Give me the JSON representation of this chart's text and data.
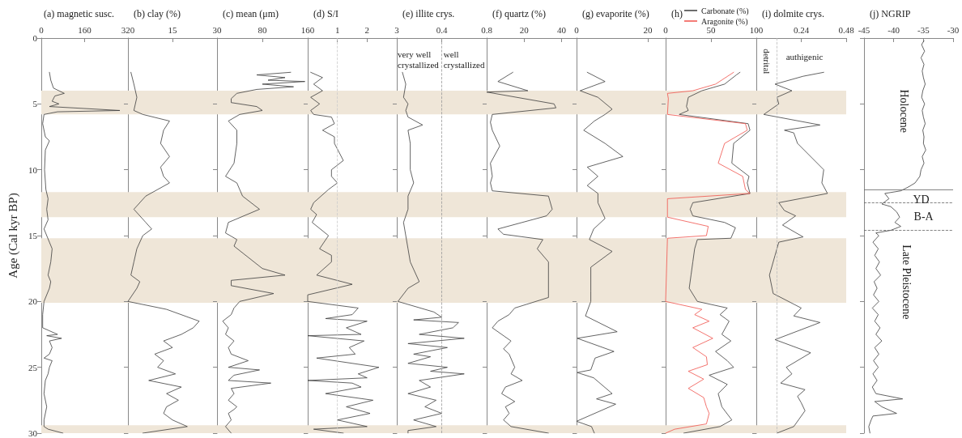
{
  "chart_data": [
    {
      "type": "line",
      "title": "(a) magnetic susc.",
      "ylabel": "Age (Cal kyr BP)",
      "xlim": [
        0,
        320
      ],
      "xticks": [
        0,
        160,
        320
      ],
      "ylim": [
        30,
        0
      ],
      "yticks": [
        0,
        5,
        10,
        15,
        20,
        25,
        30
      ],
      "bands": [
        {
          "axis": "y",
          "from": 4,
          "to": 5.8,
          "color": "#efe6d8"
        },
        {
          "axis": "y",
          "from": 11.7,
          "to": 13.6,
          "color": "#efe6d8"
        },
        {
          "axis": "y",
          "from": 15.2,
          "to": 20.1,
          "color": "#efe6d8"
        },
        {
          "axis": "y",
          "from": 29.4,
          "to": 30,
          "color": "#efe6d8"
        }
      ],
      "series": [
        {
          "color": "#3c3c3c",
          "x": [
            30,
            35,
            45,
            85,
            50,
            40,
            65,
            30,
            290,
            60,
            10,
            5,
            15,
            30,
            15,
            12,
            17,
            25,
            20,
            25,
            10,
            30,
            40,
            35,
            25,
            35,
            30,
            10,
            5,
            5,
            60,
            20,
            75,
            30,
            40,
            30,
            10,
            40,
            30,
            25,
            15,
            10,
            20,
            10,
            10,
            25,
            80
          ],
          "values": [
            2.6,
            3.2,
            3.8,
            4.2,
            4.4,
            4.8,
            5.0,
            5.2,
            5.5,
            5.6,
            5.8,
            6.5,
            7.5,
            7.8,
            8.5,
            10,
            11.5,
            12.2,
            13,
            13.8,
            14.5,
            15.5,
            16,
            17,
            18,
            18.5,
            19,
            20,
            21,
            22,
            22.5,
            22.6,
            22.8,
            23,
            23.5,
            24,
            24.3,
            24.5,
            25,
            25.5,
            26,
            27,
            28,
            29,
            29.5,
            29.7,
            30
          ]
        }
      ]
    },
    {
      "type": "line",
      "title": "(b) clay (%)",
      "xlim": [
        0,
        30
      ],
      "xticks": [
        15,
        30
      ],
      "ylim": [
        30,
        0
      ],
      "yticks": [
        0,
        5,
        10,
        15,
        20,
        25,
        30
      ],
      "tick_labels": "x",
      "bands": [
        {
          "axis": "y",
          "from": 4,
          "to": 5.8,
          "color": "#efe6d8"
        },
        {
          "axis": "y",
          "from": 11.7,
          "to": 13.6,
          "color": "#efe6d8"
        },
        {
          "axis": "y",
          "from": 15.2,
          "to": 20.1,
          "color": "#efe6d8"
        },
        {
          "axis": "y",
          "from": 29.4,
          "to": 30,
          "color": "#efe6d8"
        }
      ],
      "series": [
        {
          "color": "#3c3c3c",
          "x": [
            1,
            2,
            3,
            2,
            5,
            14,
            12,
            11,
            14,
            11,
            12,
            14,
            6,
            2,
            6,
            8,
            5,
            3,
            2,
            1,
            4,
            3,
            0,
            13,
            24,
            22,
            18,
            12,
            15,
            9,
            12,
            10,
            16,
            7,
            18,
            13,
            17,
            13,
            12,
            15,
            20,
            5
          ],
          "values": [
            2.6,
            3.5,
            4.5,
            5.5,
            5.8,
            6.3,
            7,
            8,
            9,
            9.8,
            10.5,
            11,
            12,
            13,
            14,
            14.5,
            15,
            16,
            17,
            18,
            18.5,
            19,
            20,
            20.6,
            21.5,
            22,
            22.5,
            23,
            23.5,
            24,
            24.5,
            25,
            25.5,
            26,
            26.5,
            27,
            27.5,
            28,
            28.5,
            29,
            29.5,
            30
          ]
        }
      ]
    },
    {
      "type": "line",
      "title": "(c) mean (μm)",
      "xlim": [
        0,
        160
      ],
      "xticks": [
        80,
        160
      ],
      "ylim": [
        30,
        0
      ],
      "yticks": [
        0,
        5,
        10,
        15,
        20,
        25,
        30
      ],
      "tick_labels": "x",
      "bands": [
        {
          "axis": "y",
          "from": 4,
          "to": 5.8,
          "color": "#efe6d8"
        },
        {
          "axis": "y",
          "from": 11.7,
          "to": 13.6,
          "color": "#efe6d8"
        },
        {
          "axis": "y",
          "from": 15.2,
          "to": 20.1,
          "color": "#efe6d8"
        },
        {
          "axis": "y",
          "from": 29.4,
          "to": 30,
          "color": "#efe6d8"
        }
      ],
      "series": [
        {
          "color": "#3c3c3c",
          "x": [
            130,
            70,
            120,
            90,
            155,
            80,
            135,
            70,
            35,
            25,
            25,
            70,
            80,
            40,
            20,
            35,
            35,
            30,
            15,
            35,
            45,
            75,
            20,
            15,
            35,
            30,
            80,
            120,
            25,
            25,
            100,
            40,
            30,
            25,
            10,
            20,
            15,
            30,
            20,
            25,
            55,
            20,
            75,
            30,
            20,
            95,
            25,
            30,
            20,
            35,
            30,
            20,
            25,
            15,
            25
          ],
          "values": [
            2.6,
            2.8,
            3.0,
            3.2,
            3.3,
            3.5,
            3.7,
            3.9,
            4.2,
            4.6,
            4.9,
            5.2,
            5.5,
            5.8,
            6.3,
            7,
            8,
            9.5,
            10.5,
            11,
            12,
            13,
            14,
            14.8,
            15.3,
            15.8,
            17.5,
            18,
            18.4,
            18.8,
            19.4,
            20,
            20.5,
            21,
            21.5,
            22,
            22.5,
            23,
            23.5,
            24,
            24.5,
            25,
            25.2,
            25.6,
            26,
            26.2,
            26.6,
            27,
            27.5,
            28,
            28.2,
            28.5,
            29,
            29.5,
            30
          ]
        }
      ]
    },
    {
      "type": "line",
      "title": "(d) S/I",
      "xlim": [
        0,
        3
      ],
      "xticks": [
        1,
        2,
        3
      ],
      "ylim": [
        30,
        0
      ],
      "yticks": [
        0,
        5,
        10,
        15,
        20,
        25,
        30
      ],
      "tick_labels": "x",
      "ref_lines": [
        {
          "axis": "x",
          "value": 1,
          "color": "#cccccc",
          "line_style": "dashed"
        }
      ],
      "bands": [
        {
          "axis": "y",
          "from": 4,
          "to": 5.8,
          "color": "#efe6d8"
        },
        {
          "axis": "y",
          "from": 11.7,
          "to": 13.6,
          "color": "#efe6d8"
        },
        {
          "axis": "y",
          "from": 15.2,
          "to": 20.1,
          "color": "#efe6d8"
        },
        {
          "axis": "y",
          "from": 29.4,
          "to": 30,
          "color": "#efe6d8"
        }
      ],
      "series": [
        {
          "color": "#3c3c3c",
          "x": [
            0.1,
            0.5,
            0.2,
            0.5,
            0.1,
            0.4,
            0.1,
            0.2,
            0.8,
            0.9,
            0.5,
            0.9,
            0.9,
            1.2,
            0.8,
            0.8,
            1.0,
            0.7,
            0.2,
            0.1,
            0.3,
            0.15,
            0.7,
            0.4,
            0.8,
            0.8,
            0.3,
            1.5,
            0,
            0,
            1.7,
            1.5,
            0.6,
            2.0,
            1.3,
            1.8,
            0,
            1.9,
            1.4,
            1.6,
            0.3,
            2.4,
            1.7,
            2.0,
            0,
            1.5,
            1.8,
            0.6,
            2.2,
            1.3,
            2.1,
            1.0,
            2.0,
            0.2,
            1.2
          ],
          "values": [
            2.6,
            3,
            3.5,
            4,
            4.5,
            5,
            5.5,
            5.8,
            6,
            6.5,
            7,
            7.5,
            8,
            9.3,
            10,
            10.5,
            11,
            11.5,
            12.5,
            13,
            13.4,
            14,
            15,
            16,
            16.5,
            17,
            18,
            18.7,
            19.5,
            20,
            20.5,
            21,
            21.3,
            21.5,
            22,
            22.5,
            22.6,
            23,
            23.5,
            24,
            24.3,
            25,
            25.5,
            25.8,
            26,
            26.2,
            26.5,
            27,
            27.5,
            28,
            28.5,
            29,
            29.5,
            29.7,
            30
          ]
        }
      ]
    },
    {
      "type": "line",
      "title": "(e) illite crys.",
      "xlim": [
        0,
        0.8
      ],
      "xticks": [
        0.4,
        0.8
      ],
      "ylim": [
        30,
        0
      ],
      "yticks": [
        0,
        5,
        10,
        15,
        20,
        25,
        30
      ],
      "tick_labels": "x",
      "ref_lines": [
        {
          "axis": "x",
          "value": 0.4,
          "color": "#999999",
          "line_style": "dashed"
        }
      ],
      "annotations": [
        "very well crystallized",
        "well crystallized"
      ],
      "bands": [
        {
          "axis": "y",
          "from": 4,
          "to": 5.8,
          "color": "#efe6d8"
        },
        {
          "axis": "y",
          "from": 11.7,
          "to": 13.6,
          "color": "#efe6d8"
        },
        {
          "axis": "y",
          "from": 15.2,
          "to": 20.1,
          "color": "#efe6d8"
        },
        {
          "axis": "y",
          "from": 29.4,
          "to": 30,
          "color": "#efe6d8"
        }
      ],
      "series": [
        {
          "color": "#3c3c3c",
          "x": [
            0.05,
            0.08,
            0.06,
            0.1,
            0.08,
            0.1,
            0.23,
            0.1,
            0.12,
            0.12,
            0.15,
            0.1,
            0.1,
            0.06,
            0.08,
            0.1,
            0.12,
            0.2,
            0.1,
            0.01,
            0.33,
            0.4,
            0.15,
            0.55,
            0.5,
            0.2,
            0.6,
            0.1,
            0.45,
            0.15,
            0.3,
            0.1,
            0.45,
            0.3,
            0.6,
            0.2,
            0.3,
            0.1,
            0.35,
            0.25,
            0.4,
            0.15,
            0.35,
            0.1,
            0.1
          ],
          "values": [
            2.6,
            3.5,
            4.5,
            5,
            5.5,
            6,
            6.6,
            7,
            8,
            10,
            11,
            12,
            13,
            14,
            15,
            16,
            17,
            18.5,
            19,
            20,
            20.8,
            21.2,
            21.4,
            21.6,
            22,
            22.5,
            22.8,
            23.2,
            23.5,
            24,
            24.2,
            24.7,
            25,
            25.3,
            25.5,
            26,
            26.5,
            27,
            27.5,
            28,
            28.5,
            29,
            29.5,
            29.8,
            30
          ]
        }
      ]
    },
    {
      "type": "line",
      "title": "(f) quartz (%)",
      "xlim": [
        0,
        48
      ],
      "xticks": [
        20,
        40
      ],
      "ylim": [
        30,
        0
      ],
      "yticks": [
        0,
        5,
        10,
        15,
        20,
        25,
        30
      ],
      "tick_labels": "x",
      "bands": [
        {
          "axis": "y",
          "from": 4,
          "to": 5.8,
          "color": "#efe6d8"
        },
        {
          "axis": "y",
          "from": 11.7,
          "to": 13.6,
          "color": "#efe6d8"
        },
        {
          "axis": "y",
          "from": 15.2,
          "to": 20.1,
          "color": "#efe6d8"
        },
        {
          "axis": "y",
          "from": 29.4,
          "to": 30,
          "color": "#efe6d8"
        }
      ],
      "series": [
        {
          "color": "#3c3c3c",
          "x": [
            14,
            6,
            22,
            0,
            36,
            37,
            3,
            2,
            3,
            7,
            2,
            3,
            2,
            3,
            33,
            35,
            32,
            6,
            9,
            30,
            27,
            33,
            33,
            15,
            12,
            6,
            3,
            13,
            9,
            12,
            15,
            13,
            19,
            10,
            8,
            15,
            10,
            12,
            9,
            13,
            33
          ],
          "values": [
            2.6,
            3.3,
            4.0,
            4.1,
            5.0,
            5.3,
            5.8,
            6.4,
            7.0,
            8.2,
            9.5,
            10.5,
            11,
            11.6,
            12,
            13,
            13.5,
            14.5,
            14.9,
            15.3,
            16,
            17,
            19.7,
            20.5,
            21,
            21.5,
            22,
            23,
            23.6,
            24,
            25,
            25.5,
            26,
            26.5,
            27,
            27.6,
            28,
            28.5,
            29,
            29.5,
            30
          ]
        }
      ]
    },
    {
      "type": "line",
      "title": "(g) evaporite (%)",
      "xlim": [
        0,
        25
      ],
      "xticks": [
        0,
        20
      ],
      "ylim": [
        30,
        0
      ],
      "yticks": [
        0,
        5,
        10,
        15,
        20,
        25,
        30
      ],
      "tick_labels": "x",
      "bands": [
        {
          "axis": "y",
          "from": 4,
          "to": 5.8,
          "color": "#efe6d8"
        },
        {
          "axis": "y",
          "from": 11.7,
          "to": 13.6,
          "color": "#efe6d8"
        },
        {
          "axis": "y",
          "from": 15.2,
          "to": 20.1,
          "color": "#efe6d8"
        },
        {
          "axis": "y",
          "from": 29.4,
          "to": 30,
          "color": "#efe6d8"
        }
      ],
      "series": [
        {
          "color": "#3c3c3c",
          "x": [
            3,
            8,
            1,
            6,
            10,
            8,
            5,
            2,
            8,
            13,
            3,
            6,
            3,
            6,
            6,
            8,
            4.8,
            3.6,
            10,
            4,
            4,
            4,
            2.5,
            11.4,
            0.2,
            10.5,
            5.2,
            4,
            0.2,
            4.8,
            10,
            5.6,
            11,
            0,
            4.2,
            5
          ],
          "values": [
            2.6,
            3.3,
            4.0,
            4.5,
            5.4,
            5.8,
            6.3,
            7,
            8,
            9,
            9.8,
            10.5,
            11.2,
            11.8,
            12.5,
            13.7,
            14.5,
            15.3,
            16.2,
            17.4,
            19.2,
            20,
            21.1,
            22.3,
            22.8,
            23.8,
            24.3,
            25.2,
            25.4,
            25.8,
            27,
            27.4,
            27.8,
            29.1,
            29.5,
            30
          ]
        }
      ]
    },
    {
      "type": "line",
      "title": "(h)",
      "legend": "top",
      "xlim": [
        0,
        100
      ],
      "xticks": [
        0,
        50,
        100
      ],
      "ylim": [
        30,
        0
      ],
      "yticks": [
        0,
        5,
        10,
        15,
        20,
        25,
        30
      ],
      "tick_labels": "x",
      "bands": [
        {
          "axis": "y",
          "from": 4,
          "to": 5.8,
          "color": "#efe6d8"
        },
        {
          "axis": "y",
          "from": 11.7,
          "to": 13.6,
          "color": "#efe6d8"
        },
        {
          "axis": "y",
          "from": 15.2,
          "to": 20.1,
          "color": "#efe6d8"
        },
        {
          "axis": "y",
          "from": 29.4,
          "to": 30,
          "color": "#efe6d8"
        }
      ],
      "series": [
        {
          "name": "Carbonate (%)",
          "color": "#3c3c3c",
          "x": [
            82,
            78,
            65,
            40,
            25,
            23,
            25,
            15,
            91,
            93,
            75,
            73,
            92,
            90,
            93,
            30,
            27,
            30,
            65,
            77,
            72,
            35,
            32,
            30,
            28,
            26,
            35,
            68,
            60,
            70,
            62,
            72,
            55,
            68,
            75,
            48,
            68,
            58,
            62,
            73,
            60,
            20
          ],
          "values": [
            2.6,
            2.8,
            3.5,
            4.0,
            4.5,
            5.2,
            5.5,
            5.8,
            6.5,
            7,
            8,
            9.5,
            10.5,
            11,
            11.8,
            12.5,
            13,
            13.5,
            14,
            14.4,
            15.2,
            15.3,
            16,
            17,
            18,
            19,
            20,
            20.5,
            21,
            21.5,
            22.5,
            23,
            23.8,
            24.5,
            25,
            25.6,
            26.3,
            27,
            28,
            29,
            29.5,
            30
          ]
        },
        {
          "name": "Aragonite (%)",
          "color": "#f0504a",
          "x": [
            75,
            55,
            30,
            2,
            3,
            2,
            88,
            90,
            65,
            58,
            85,
            88,
            93,
            2,
            2,
            47,
            45,
            2,
            0,
            40,
            32,
            48,
            30,
            52,
            30,
            45,
            46,
            25,
            42,
            25,
            42,
            45,
            48,
            45,
            10,
            0
          ],
          "values": [
            2.6,
            3.5,
            4.0,
            4.2,
            4.6,
            5.8,
            6.5,
            7,
            8,
            9.5,
            10.5,
            11.5,
            11.8,
            12.2,
            13.6,
            14.3,
            15.0,
            15.2,
            20.0,
            20.6,
            21,
            21.5,
            22,
            22.8,
            23.5,
            24.2,
            24.8,
            25.3,
            25.9,
            26.6,
            27.3,
            28,
            28.5,
            29.3,
            29.7,
            30
          ]
        }
      ]
    },
    {
      "type": "line",
      "title": "(i) dolmite crys.",
      "xlim": [
        0,
        0.48
      ],
      "xticks": [
        0.24,
        0.48
      ],
      "ylim": [
        30,
        0
      ],
      "yticks": [
        0,
        5,
        10,
        15,
        20,
        25,
        30
      ],
      "tick_labels": "x",
      "ref_lines": [
        {
          "axis": "x",
          "value": 0.11,
          "color": "#bbbbbb",
          "line_style": "dashed"
        }
      ],
      "annotations": [
        "detrital",
        "authigenic"
      ],
      "bands": [
        {
          "axis": "y",
          "from": 4,
          "to": 5.8,
          "color": "#efe6d8"
        },
        {
          "axis": "y",
          "from": 11.7,
          "to": 13.6,
          "color": "#efe6d8"
        },
        {
          "axis": "y",
          "from": 15.2,
          "to": 20.1,
          "color": "#efe6d8"
        },
        {
          "axis": "y",
          "from": 29.4,
          "to": 30,
          "color": "#efe6d8"
        }
      ],
      "series": [
        {
          "color": "#3c3c3c",
          "x": [
            0.36,
            0.25,
            0.1,
            0.19,
            0.11,
            0.12,
            0.04,
            0.34,
            0.15,
            0.2,
            0.22,
            0.36,
            0.35,
            0.38,
            0.12,
            0.15,
            0.21,
            0.14,
            0.25,
            0.12,
            0.1,
            0.07,
            0.09,
            0.24,
            0.2,
            0.34,
            0.1,
            0.29,
            0.16,
            0.19,
            0.13,
            0.26,
            0.22,
            0.24,
            0.26,
            0.2,
            0.11
          ],
          "values": [
            2.6,
            2.9,
            3.5,
            4.0,
            4.5,
            5.0,
            5.8,
            6.6,
            7.0,
            7.2,
            8,
            10,
            11,
            11.8,
            12.5,
            13.1,
            13.5,
            14.2,
            15.1,
            15.5,
            16.5,
            18,
            19.4,
            20.5,
            21.1,
            21.6,
            22.9,
            23.9,
            25,
            25.5,
            26.2,
            26.7,
            27.2,
            27.7,
            28.3,
            29.5,
            30
          ]
        }
      ]
    },
    {
      "type": "line",
      "title": "(j) NGRIP",
      "xlim": [
        -45,
        -30
      ],
      "xticks": [
        -45,
        -40,
        -35,
        -30
      ],
      "ylim": [
        30,
        0
      ],
      "yticks": [
        0,
        5,
        10,
        15,
        20,
        25,
        30
      ],
      "tick_labels": "x",
      "ref_lines": [
        {
          "axis": "y",
          "value": 11.5,
          "color": "#666666",
          "line_style": "solid"
        },
        {
          "axis": "y",
          "value": 12.5,
          "color": "#666666",
          "line_style": "dashed"
        },
        {
          "axis": "y",
          "value": 14.6,
          "color": "#666666",
          "line_style": "dashed"
        }
      ],
      "annotations": [
        "Holocene",
        "YD",
        "B-A",
        "Late Pleistocene"
      ],
      "series": [
        {
          "color": "#3c3c3c",
          "x": [
            -34.9,
            -35.3,
            -34.8,
            -35.4,
            -34.9,
            -35.2,
            -35.0,
            -34.7,
            -35.1,
            -35.3,
            -34.8,
            -35.2,
            -35.0,
            -34.7,
            -35.1,
            -34.9,
            -35.0,
            -34.6,
            -35.2,
            -34.9,
            -35.4,
            -35.6,
            -36.4,
            -37.5,
            -38.8,
            -41.5,
            -40.8,
            -42.0,
            -40.5,
            -39.5,
            -39.0,
            -39.8,
            -38.8,
            -40.5,
            -43,
            -42.5,
            -43.5,
            -42.6,
            -43.2,
            -42.4,
            -43.0,
            -42.2,
            -43.3,
            -42.8,
            -43.4,
            -42.5,
            -43.6,
            -42.6,
            -43.2,
            -42.3,
            -43.0,
            -42.0,
            -43.2,
            -42.5,
            -43.4,
            -42.6,
            -43.5,
            -42.8,
            -43.6,
            -43.0,
            -38.5,
            -43.2,
            -42.0,
            -39.5,
            -43.5,
            -43.8,
            -44.2,
            -44.0
          ],
          "values": [
            0.2,
            0.5,
            1,
            1.5,
            2,
            2.5,
            3,
            3.5,
            4,
            4.5,
            5,
            5.5,
            6,
            6.5,
            7,
            7.5,
            8,
            8.5,
            9,
            9.5,
            10,
            10.5,
            11,
            11.3,
            11.6,
            11.8,
            12.2,
            12.6,
            12.8,
            13.2,
            13.6,
            14,
            14.3,
            14.6,
            14.8,
            15,
            15.5,
            16,
            16.5,
            17,
            17.5,
            18,
            18.5,
            19,
            19.5,
            20,
            20.5,
            21,
            21.5,
            22,
            22.5,
            23,
            23.5,
            24,
            24.5,
            25,
            25.5,
            26,
            26.5,
            27,
            27.4,
            27.6,
            28,
            28.5,
            28.7,
            29,
            29.5,
            30
          ]
        }
      ]
    }
  ]
}
